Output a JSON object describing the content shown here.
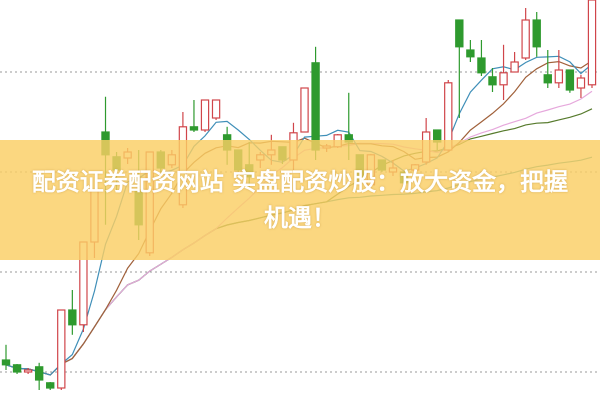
{
  "banner": {
    "line1": "配资证券配资网站 实盘配资炒股：放大资金，把握",
    "line2": "机遇！",
    "color": "#facE64"
  },
  "chart_data": {
    "type": "candlestick",
    "title": "",
    "xlabel": "",
    "ylabel": "",
    "ylim": [
      0,
      100
    ],
    "grid": "horizontal-dotted",
    "up_color": "#d0454a",
    "down_color": "#2e9a2e",
    "candles": [
      {
        "o": 10,
        "c": 8.8,
        "h": 13.8,
        "l": 7.5
      },
      {
        "o": 8.8,
        "c": 7,
        "h": 9,
        "l": 6.5
      },
      {
        "o": 7,
        "c": 7.5,
        "h": 8,
        "l": 6.5
      },
      {
        "o": 8.3,
        "c": 5,
        "h": 9.3,
        "l": 2.5
      },
      {
        "o": 4.3,
        "c": 3,
        "h": 4.5,
        "l": 2.5
      },
      {
        "o": 3,
        "c": 22.5,
        "h": 22.5,
        "l": 2.5
      },
      {
        "o": 22.5,
        "c": 18.8,
        "h": 27.5,
        "l": 16.3
      },
      {
        "o": 18.8,
        "c": 39.5,
        "h": 39.5,
        "l": 17
      },
      {
        "o": 39.5,
        "c": 52.5,
        "h": 52.5,
        "l": 35.5
      },
      {
        "o": 67,
        "c": 61.3,
        "h": 75.8,
        "l": 43.8
      },
      {
        "o": 60.8,
        "c": 57.5,
        "h": 62,
        "l": 52.5
      },
      {
        "o": 60.5,
        "c": 62,
        "h": 63,
        "l": 59
      },
      {
        "o": 52.5,
        "c": 43.8,
        "h": 62.5,
        "l": 40
      },
      {
        "o": 36.8,
        "c": 62,
        "h": 62,
        "l": 36
      },
      {
        "o": 62,
        "c": 58,
        "h": 62.5,
        "l": 57
      },
      {
        "o": 58.8,
        "c": 61.3,
        "h": 62.5,
        "l": 58
      },
      {
        "o": 48.8,
        "c": 68.3,
        "h": 72,
        "l": 48
      },
      {
        "o": 68.3,
        "c": 67.5,
        "h": 75,
        "l": 67
      },
      {
        "o": 67.5,
        "c": 75,
        "h": 75,
        "l": 67
      },
      {
        "o": 70.5,
        "c": 75,
        "h": 75,
        "l": 70
      },
      {
        "o": 66.3,
        "c": 62.5,
        "h": 68.3,
        "l": 58.8
      },
      {
        "o": 62.5,
        "c": 57.5,
        "h": 62.5,
        "l": 57
      },
      {
        "o": 58.8,
        "c": 55.8,
        "h": 64.5,
        "l": 52.5
      },
      {
        "o": 60,
        "c": 61.3,
        "h": 62,
        "l": 58
      },
      {
        "o": 61.3,
        "c": 62.5,
        "h": 66.3,
        "l": 58.8
      },
      {
        "o": 63.3,
        "c": 60,
        "h": 63.3,
        "l": 59
      },
      {
        "o": 60,
        "c": 66.8,
        "h": 69.3,
        "l": 57.5
      },
      {
        "o": 67,
        "c": 78,
        "h": 78,
        "l": 67
      },
      {
        "o": 84.3,
        "c": 62.5,
        "h": 88.3,
        "l": 60
      },
      {
        "o": 63,
        "c": 63.5,
        "h": 64,
        "l": 62
      },
      {
        "o": 63.3,
        "c": 66.3,
        "h": 66.5,
        "l": 63
      },
      {
        "o": 66.3,
        "c": 64.5,
        "h": 76.8,
        "l": 60
      },
      {
        "o": 61.3,
        "c": 55,
        "h": 61.3,
        "l": 54
      },
      {
        "o": 53.8,
        "c": 61.3,
        "h": 61.5,
        "l": 53
      },
      {
        "o": 60,
        "c": 57.5,
        "h": 60,
        "l": 57
      },
      {
        "o": 57,
        "c": 58,
        "h": 60,
        "l": 56
      },
      {
        "o": 57,
        "c": 54.3,
        "h": 57,
        "l": 54
      },
      {
        "o": 57.5,
        "c": 58.8,
        "h": 59,
        "l": 56
      },
      {
        "o": 59.5,
        "c": 67,
        "h": 70.5,
        "l": 58.8
      },
      {
        "o": 67.5,
        "c": 64.5,
        "h": 67.5,
        "l": 62.5
      },
      {
        "o": 62.5,
        "c": 79.3,
        "h": 80,
        "l": 62
      },
      {
        "o": 95,
        "c": 88.3,
        "h": 95,
        "l": 70.5
      },
      {
        "o": 87.5,
        "c": 85.8,
        "h": 90,
        "l": 84.5
      },
      {
        "o": 85.5,
        "c": 81.8,
        "h": 90,
        "l": 81
      },
      {
        "o": 80.8,
        "c": 78.8,
        "h": 83,
        "l": 77
      },
      {
        "o": 78.8,
        "c": 81.8,
        "h": 88.8,
        "l": 75
      },
      {
        "o": 82,
        "c": 84.5,
        "h": 87,
        "l": 82
      },
      {
        "o": 85.5,
        "c": 95,
        "h": 98,
        "l": 85
      },
      {
        "o": 95,
        "c": 88.3,
        "h": 97,
        "l": 85.8
      },
      {
        "o": 81.3,
        "c": 79.3,
        "h": 87.5,
        "l": 78
      },
      {
        "o": 79.3,
        "c": 82.5,
        "h": 87.5,
        "l": 78
      },
      {
        "o": 82.5,
        "c": 77.5,
        "h": 82.5,
        "l": 76.8
      },
      {
        "o": 78,
        "c": 80.5,
        "h": 81.3,
        "l": 75.5
      },
      {
        "o": 78.8,
        "c": 100,
        "h": 100,
        "l": 78
      }
    ],
    "moving_averages": [
      {
        "window": 5,
        "color": "#3f8fb8"
      },
      {
        "window": 10,
        "color": "#a0603a"
      },
      {
        "window": 20,
        "color": "#e6a8dc"
      },
      {
        "window": 30,
        "color": "#567a2c"
      },
      {
        "window": 60,
        "color": "#3a9a9a"
      }
    ],
    "gridlines": [
      82,
      57,
      32,
      7
    ]
  }
}
